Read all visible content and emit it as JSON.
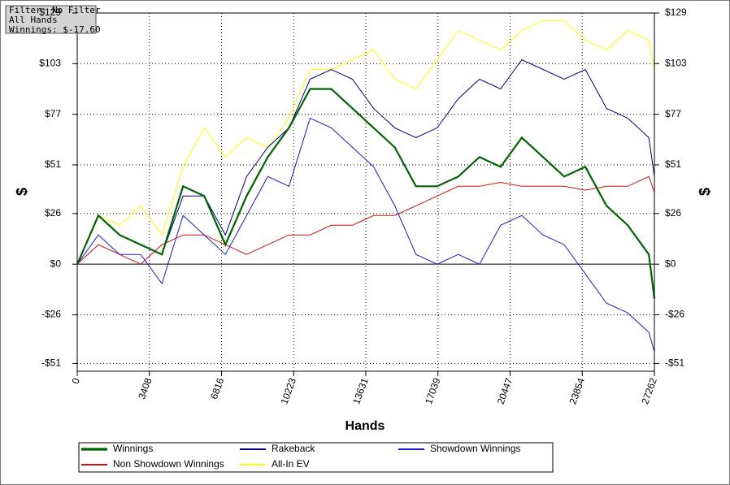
{
  "chart_data": {
    "type": "line",
    "annotations": [
      "Filter: No Filter",
      "All Hands",
      "Winnings: $-17.60"
    ],
    "xlabel": "Hands",
    "ylabel": "$",
    "xlim": [
      0,
      27262
    ],
    "ylim": [
      -55,
      129
    ],
    "xticks": [
      0,
      3408,
      6816,
      10223,
      13631,
      17039,
      20447,
      23854,
      27262
    ],
    "yticks": [
      {
        "value": -51,
        "label": "-$51"
      },
      {
        "value": -26,
        "label": "-$26"
      },
      {
        "value": 0,
        "label": "$0"
      },
      {
        "value": 26,
        "label": "$26"
      },
      {
        "value": 51,
        "label": "$51"
      },
      {
        "value": 77,
        "label": "$77"
      },
      {
        "value": 103,
        "label": "$103"
      },
      {
        "value": 129,
        "label": "$129"
      }
    ],
    "grid": true,
    "x": [
      0,
      1000,
      2000,
      3000,
      4000,
      5000,
      6000,
      7000,
      8000,
      9000,
      10000,
      11000,
      12000,
      13000,
      14000,
      15000,
      16000,
      17000,
      18000,
      19000,
      20000,
      21000,
      22000,
      23000,
      24000,
      25000,
      26000,
      27000,
      27262
    ],
    "series": [
      {
        "name": "Winnings",
        "color": "#006400",
        "width": 2.2,
        "values": [
          0,
          25,
          15,
          10,
          5,
          40,
          35,
          10,
          35,
          55,
          70,
          90,
          90,
          80,
          70,
          60,
          40,
          40,
          45,
          55,
          50,
          65,
          55,
          45,
          50,
          30,
          20,
          5,
          -17.6
        ]
      },
      {
        "name": "Rakeback",
        "color": "#000080",
        "width": 1,
        "values": [
          0,
          25,
          15,
          10,
          5,
          35,
          35,
          15,
          45,
          60,
          70,
          95,
          100,
          95,
          80,
          70,
          65,
          70,
          85,
          95,
          90,
          105,
          100,
          95,
          100,
          80,
          75,
          65,
          45
        ]
      },
      {
        "name": "Showdown Winnings",
        "color": "#1a1ad0",
        "width": 1,
        "values": [
          0,
          15,
          5,
          5,
          -10,
          25,
          15,
          5,
          25,
          45,
          40,
          75,
          70,
          60,
          50,
          30,
          5,
          0,
          5,
          0,
          20,
          25,
          15,
          10,
          -5,
          -20,
          -25,
          -35,
          -45
        ]
      },
      {
        "name": "Non Showdown Winnings",
        "color": "#d01010",
        "width": 1,
        "values": [
          0,
          10,
          5,
          0,
          10,
          15,
          15,
          10,
          5,
          10,
          15,
          15,
          20,
          20,
          25,
          25,
          30,
          35,
          40,
          40,
          42,
          40,
          40,
          40,
          38,
          40,
          40,
          45,
          37
        ]
      },
      {
        "name": "All-In EV",
        "color": "#ffff00",
        "width": 1,
        "values": [
          0,
          25,
          20,
          30,
          15,
          50,
          70,
          55,
          65,
          60,
          75,
          100,
          100,
          105,
          110,
          95,
          90,
          105,
          120,
          115,
          110,
          120,
          125,
          125,
          115,
          110,
          120,
          115,
          100
        ]
      }
    ]
  }
}
